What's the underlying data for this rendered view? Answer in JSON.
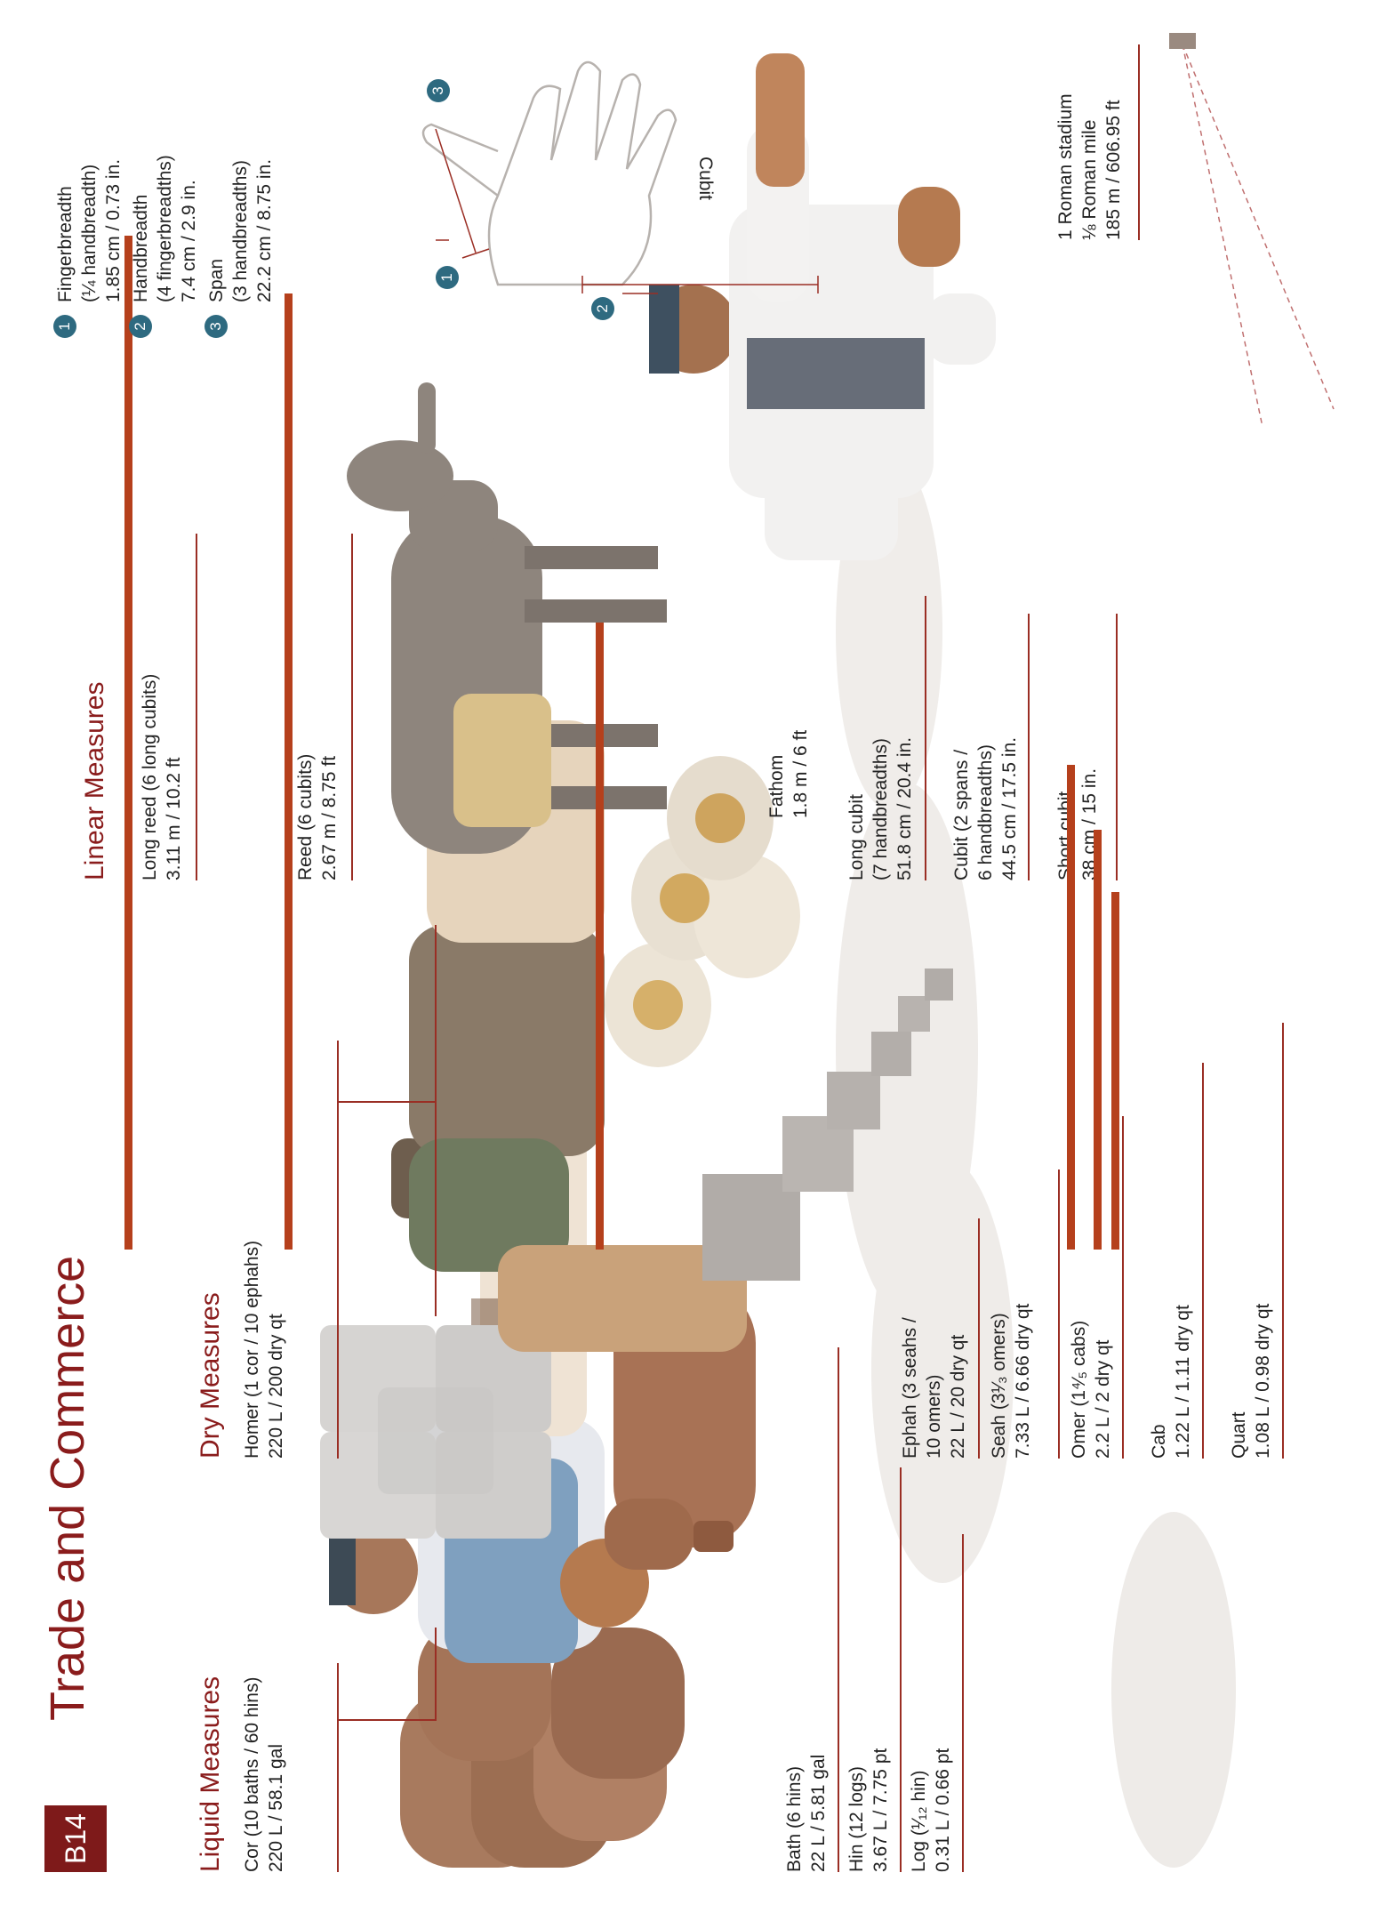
{
  "page": {
    "tag": "B14",
    "title": "Trade and Commerce"
  },
  "liquid": {
    "heading": "Liquid Measures",
    "cor": {
      "name": "Cor (10 baths / 60 hins)",
      "value": "220 L / 58.1 gal"
    },
    "bath": {
      "name": "Bath (6 hins)",
      "value": "22 L / 5.81 gal"
    },
    "hin": {
      "name": "Hin (12 logs)",
      "value": "3.67 L / 7.75 pt"
    },
    "log": {
      "name": "Log (¹⁄₁₂ hin)",
      "value": "0.31 L / 0.66 pt"
    }
  },
  "dry": {
    "heading": "Dry Measures",
    "homer": {
      "name": "Homer (1 cor / 10 ephahs)",
      "value": "220 L / 200 dry qt"
    },
    "ephah": {
      "name": "Ephah (3 seahs /",
      "name2": "10 omers)",
      "value": "22 L / 20 dry qt"
    },
    "seah": {
      "name": "Seah (3¹⁄₃ omers)",
      "value": "7.33 L / 6.66 dry qt"
    },
    "omer": {
      "name": "Omer (1⁴⁄₅ cabs)",
      "value": "2.2 L / 2 dry qt"
    },
    "cab": {
      "name": "Cab",
      "value": "1.22 L / 1.11 dry qt"
    },
    "quart": {
      "name": "Quart",
      "value": "1.08 L / 0.98 dry qt"
    }
  },
  "linear": {
    "heading": "Linear Measures",
    "long_reed": {
      "name": "Long reed (6 long cubits)",
      "value": "3.11 m / 10.2 ft"
    },
    "reed": {
      "name": "Reed (6 cubits)",
      "value": "2.67 m / 8.75 ft"
    },
    "fathom": {
      "name": "Fathom",
      "value": "1.8 m / 6 ft"
    },
    "long_cubit": {
      "name": "Long cubit",
      "detail": "(7 handbreadths)",
      "value": "51.8 cm / 20.4 in."
    },
    "cubit": {
      "name": "Cubit (2 spans /",
      "detail": "6 handbreadths)",
      "value": "44.5 cm / 17.5 in."
    },
    "short_cubit": {
      "name": "Short cubit",
      "value": "38 cm / 15 in."
    },
    "stadium": {
      "name": "1 Roman stadium",
      "detail": "⅛ Roman mile",
      "value": "185 m / 606.95 ft"
    },
    "cubit_label": "Cubit"
  },
  "palm": {
    "items": [
      {
        "num": "1",
        "name": "Fingerbreadth",
        "detail": "(¼ handbreadth)",
        "value": "1.85 cm / 0.73 in."
      },
      {
        "num": "2",
        "name": "Handbreadth",
        "detail": "(4 fingerbreadths)",
        "value": "7.4 cm / 2.9 in."
      },
      {
        "num": "3",
        "name": "Span",
        "detail": "(3 handbreadths)",
        "value": "22.2 cm / 8.75 in."
      }
    ]
  },
  "colors": {
    "accent": "#8a1c1c",
    "bar": "#b5401c",
    "badge": "#2e6a80"
  }
}
